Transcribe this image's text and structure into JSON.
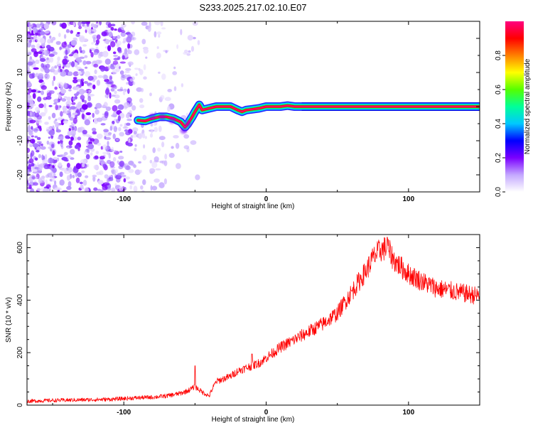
{
  "title": "S233.2025.217.02.10.E07",
  "chart_data": [
    {
      "type": "heatmap",
      "panel": "spectrogram",
      "xlabel": "Height of straight line (km)",
      "ylabel": "Frequency (Hz)",
      "xlim": [
        -168,
        150
      ],
      "ylim": [
        -25,
        25
      ],
      "xticks": [
        "-100",
        "0",
        "100"
      ],
      "yticks": [
        "-20",
        "-10",
        "0",
        "10",
        "20"
      ],
      "colorbar": {
        "label": "Normalized spectral amplitude",
        "range": [
          0,
          1
        ],
        "ticks": [
          "0.0",
          "0.2",
          "0.4",
          "0.6",
          "0.8"
        ],
        "colors": [
          "#ffffff",
          "#c4a8ff",
          "#7b00ff",
          "#0000ff",
          "#00c8ff",
          "#00ff99",
          "#55ff00",
          "#ffff00",
          "#ff8000",
          "#ff0000",
          "#ff0080"
        ]
      },
      "noise_region_x": [
        -168,
        -50
      ],
      "ridge": {
        "x": [
          -90,
          -85,
          -80,
          -75,
          -70,
          -65,
          -60,
          -57,
          -55,
          -52,
          -50,
          -47,
          -45,
          -40,
          -35,
          -30,
          -25,
          -20,
          -17,
          -14,
          -10,
          -5,
          0,
          5,
          10,
          15,
          20,
          25,
          150
        ],
        "y": [
          -4,
          -4.2,
          -3.5,
          -3,
          -3,
          -3.5,
          -4.5,
          -6,
          -5,
          -3,
          -1.5,
          0.5,
          -1,
          -0.5,
          0,
          0,
          0,
          -1,
          -1.5,
          -1,
          -0.8,
          -0.5,
          0,
          0,
          0,
          0.3,
          0,
          0,
          0
        ]
      }
    },
    {
      "type": "line",
      "panel": "snr",
      "xlabel": "Height of straight line (km)",
      "ylabel": "SNR (10 * v/v)",
      "xlim": [
        -168,
        150
      ],
      "ylim": [
        0,
        650
      ],
      "xticks": [
        "-100",
        "0",
        "100"
      ],
      "yticks": [
        "0",
        "200",
        "400",
        "600"
      ],
      "color": "#ff0000",
      "x": [
        -168,
        -150,
        -130,
        -110,
        -100,
        -90,
        -80,
        -70,
        -60,
        -55,
        -50,
        -45,
        -40,
        -38,
        -35,
        -30,
        -25,
        -20,
        -15,
        -10,
        -5,
        0,
        5,
        10,
        20,
        30,
        40,
        50,
        55,
        60,
        65,
        70,
        75,
        80,
        85,
        90,
        100,
        110,
        120,
        130,
        140,
        150
      ],
      "values": [
        15,
        18,
        20,
        22,
        25,
        28,
        30,
        35,
        45,
        55,
        70,
        50,
        35,
        60,
        90,
        100,
        110,
        130,
        140,
        150,
        160,
        180,
        200,
        220,
        250,
        280,
        310,
        350,
        390,
        430,
        470,
        510,
        560,
        590,
        600,
        550,
        500,
        470,
        445,
        435,
        425,
        415
      ],
      "spikes": [
        {
          "x": -50,
          "value": 150
        },
        {
          "x": -10,
          "value": 195
        },
        {
          "x": 85,
          "value": 640
        }
      ]
    }
  ]
}
